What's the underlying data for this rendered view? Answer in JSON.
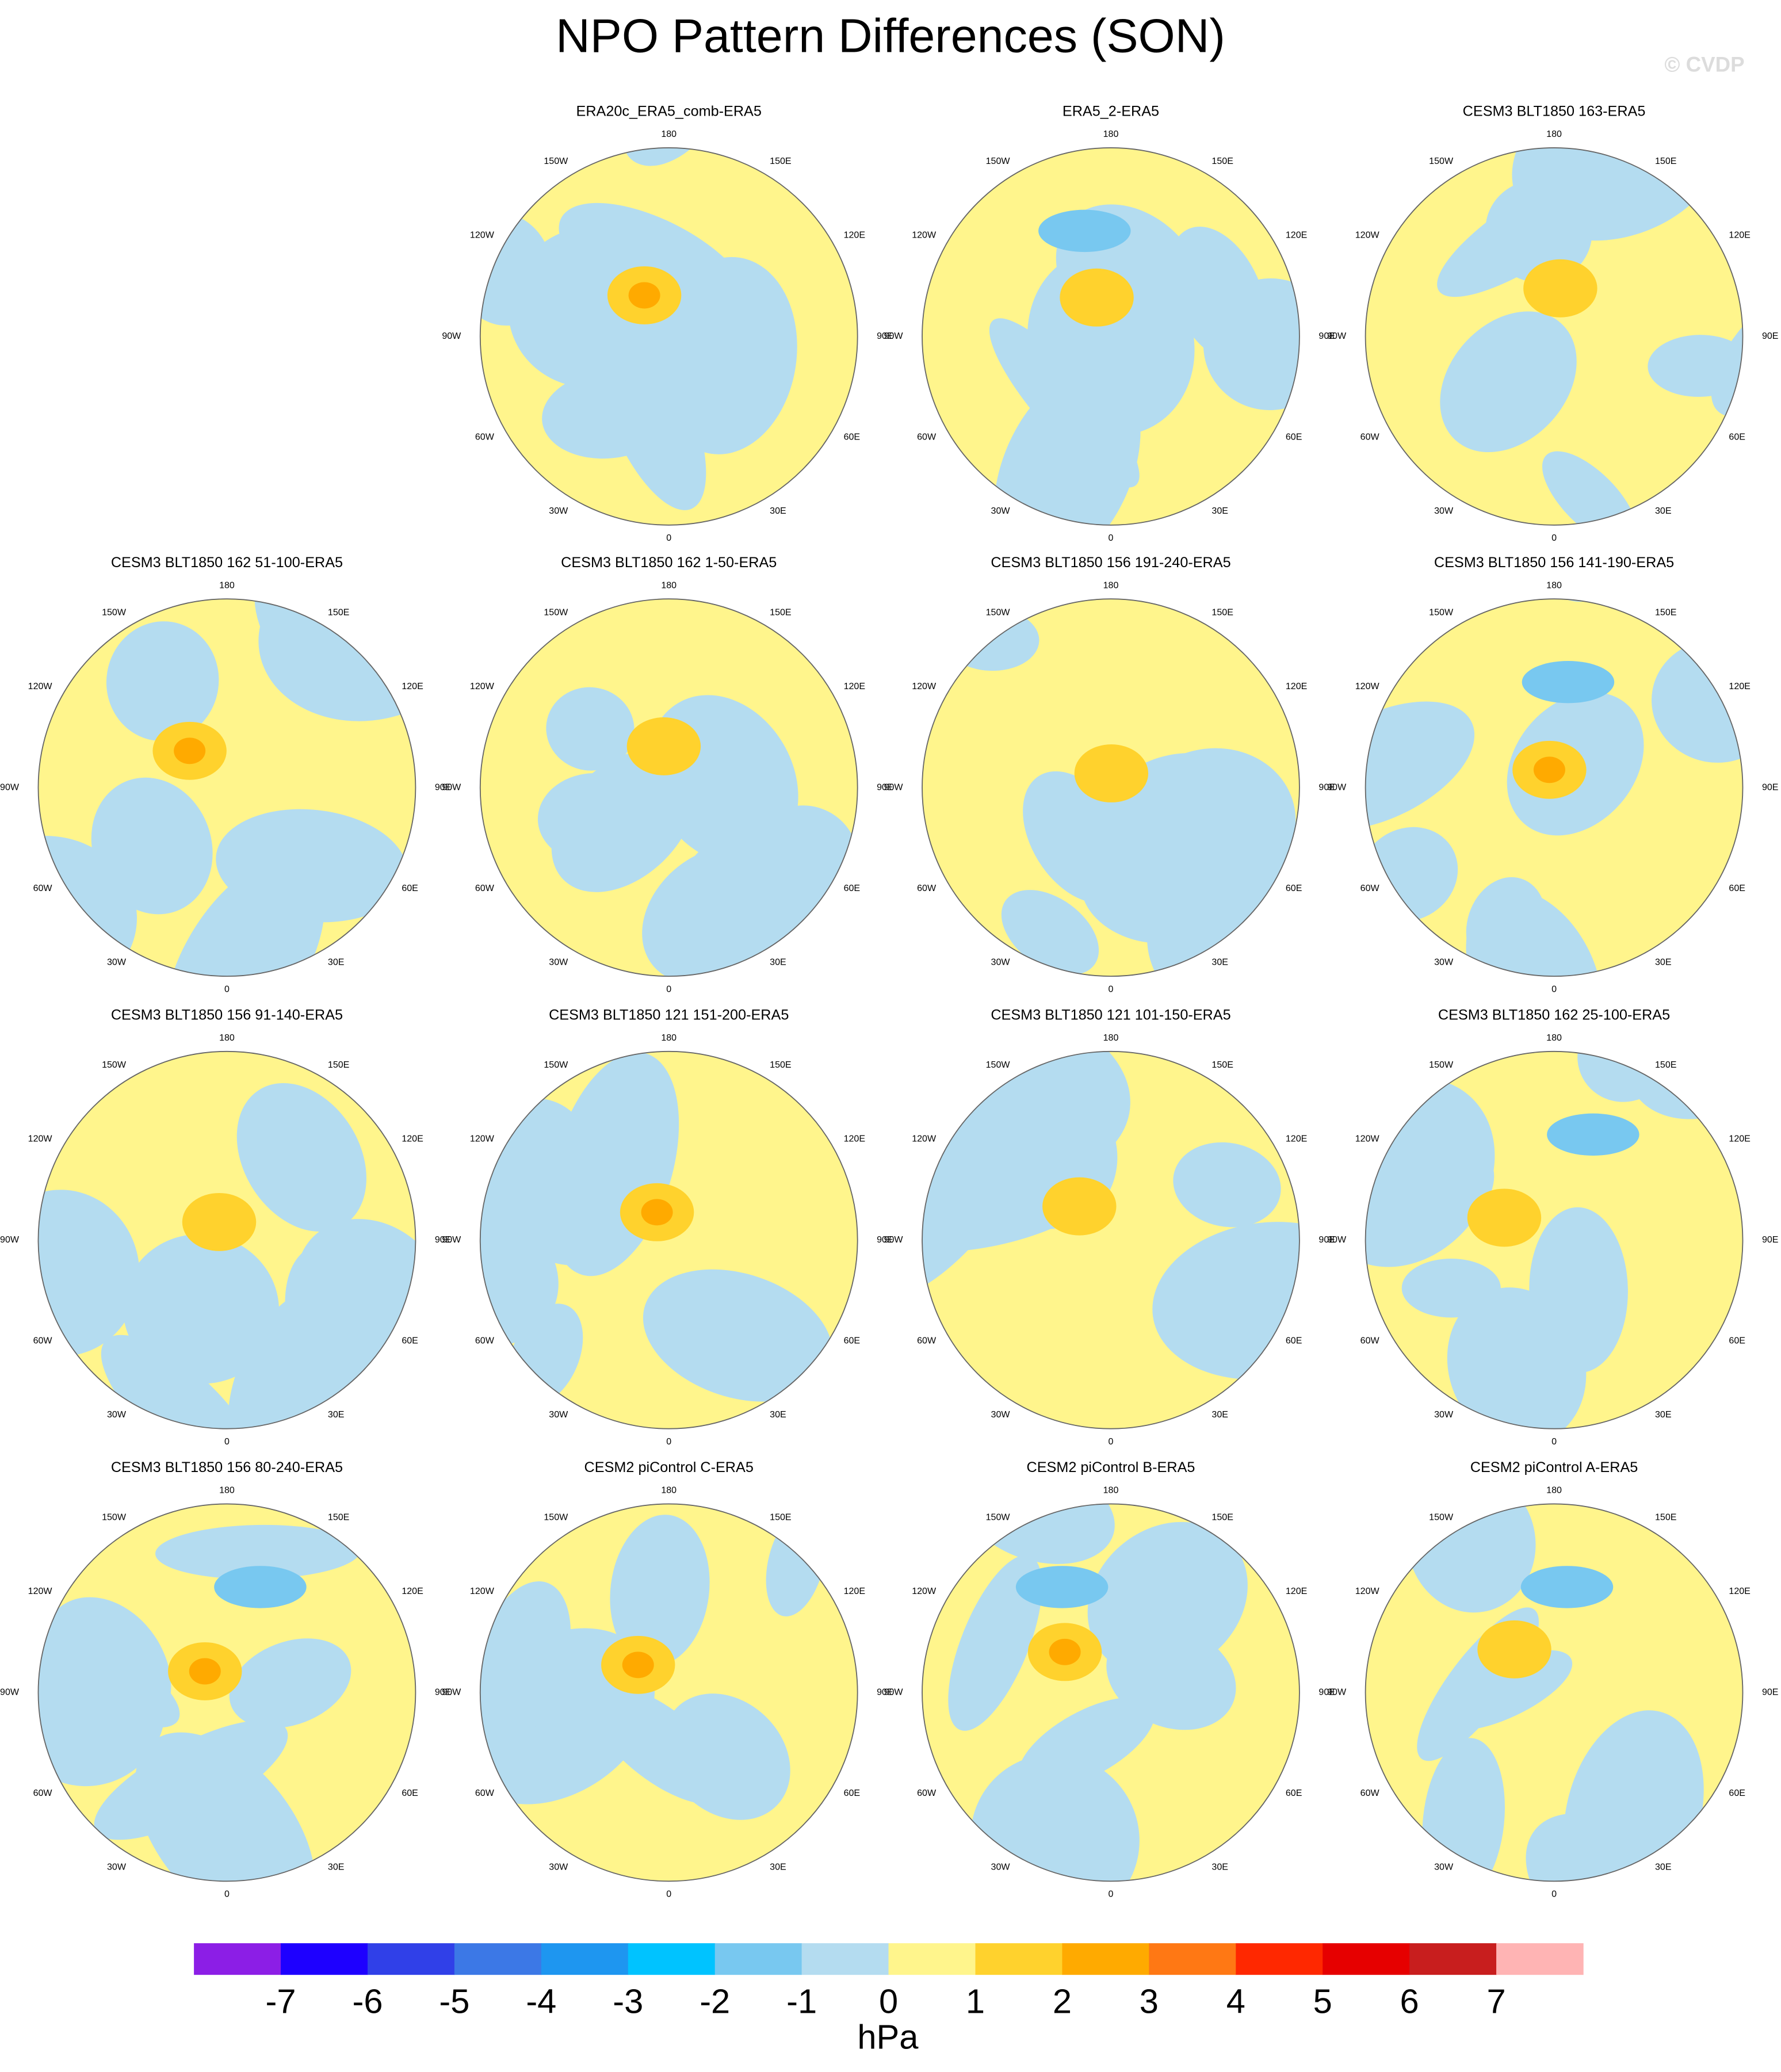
{
  "title": "NPO Pattern Differences (SON)",
  "watermark": "© CVDP",
  "longitude_labels": [
    "180",
    "150E",
    "120E",
    "90E",
    "60E",
    "30E",
    "0",
    "30W",
    "60W",
    "90W",
    "120W",
    "150W"
  ],
  "panels": [
    {
      "title": "ERA20c_ERA5_comb-ERA5"
    },
    {
      "title": "ERA5_2-ERA5"
    },
    {
      "title": "CESM3 BLT1850 163-ERA5"
    },
    {
      "title": "CESM3 BLT1850 162 51-100-ERA5"
    },
    {
      "title": "CESM3 BLT1850 162 1-50-ERA5"
    },
    {
      "title": "CESM3 BLT1850 156 191-240-ERA5"
    },
    {
      "title": "CESM3 BLT1850 156 141-190-ERA5"
    },
    {
      "title": "CESM3 BLT1850 156 91-140-ERA5"
    },
    {
      "title": "CESM3 BLT1850 121 151-200-ERA5"
    },
    {
      "title": "CESM3 BLT1850 121 101-150-ERA5"
    },
    {
      "title": "CESM3 BLT1850 162 25-100-ERA5"
    },
    {
      "title": "CESM3 BLT1850 156 80-240-ERA5"
    },
    {
      "title": "CESM2 piControl C-ERA5"
    },
    {
      "title": "CESM2 piControl B-ERA5"
    },
    {
      "title": "CESM2 piControl A-ERA5"
    }
  ],
  "colorbar": {
    "levels": [
      -7,
      -6,
      -5,
      -4,
      -3,
      -2,
      -1,
      0,
      1,
      2,
      3,
      4,
      5,
      6,
      7
    ],
    "colors": [
      "#8c1ee6",
      "#1e00ff",
      "#3040e8",
      "#3c78e6",
      "#1e96f0",
      "#00c3ff",
      "#78c8f0",
      "#b4dcf0",
      "#fff58c",
      "#ffd22d",
      "#ffaa00",
      "#ff7814",
      "#ff2800",
      "#e60000",
      "#c81e1e",
      "#ffb4b4"
    ],
    "label": "hPa"
  }
}
